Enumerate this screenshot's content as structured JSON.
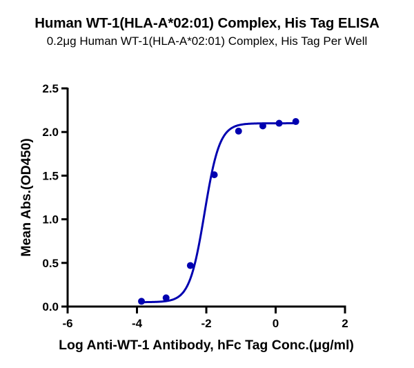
{
  "header": {
    "title": "Human WT-1(HLA-A*02:01) Complex, His Tag ELISA",
    "subtitle": "0.2μg Human WT-1(HLA-A*02:01) Complex, His Tag Per Well"
  },
  "colors": {
    "series": "#0000b0",
    "axis": "#000000",
    "background": "#ffffff"
  },
  "chart_data": {
    "type": "scatter",
    "title": "Human WT-1(HLA-A*02:01) Complex, His Tag ELISA",
    "subtitle": "0.2μg Human WT-1(HLA-A*02:01) Complex, His Tag Per Well",
    "xlabel": "Log Anti-WT-1 Antibody, hFc Tag Conc.(μg/ml)",
    "ylabel": "Mean Abs.(OD450)",
    "xlim": [
      -6,
      2
    ],
    "ylim": [
      0,
      2.5
    ],
    "x_ticks": [
      -6,
      -4,
      -2,
      0,
      2
    ],
    "x_tick_labels": [
      "-6",
      "-4",
      "-2",
      "0",
      "2"
    ],
    "y_ticks": [
      0,
      0.5,
      1.0,
      1.5,
      2.0,
      2.5
    ],
    "y_tick_labels": [
      "0.0",
      "0.5",
      "1.0",
      "1.5",
      "2.0",
      "2.5"
    ],
    "grid": false,
    "legend": null,
    "series": [
      {
        "name": "Human WT-1(HLA-A*02:01) Complex, His Tag",
        "x": [
          -3.87,
          -3.16,
          -2.46,
          -1.77,
          -1.07,
          -0.37,
          0.1,
          0.58
        ],
        "y": [
          0.06,
          0.1,
          0.47,
          1.51,
          2.01,
          2.07,
          2.1,
          2.12
        ],
        "marker": "circle",
        "fit": {
          "type": "4PL",
          "bottom": 0.05,
          "top": 2.1,
          "logEC50": -2.05,
          "hill": 2.0
        }
      }
    ]
  }
}
